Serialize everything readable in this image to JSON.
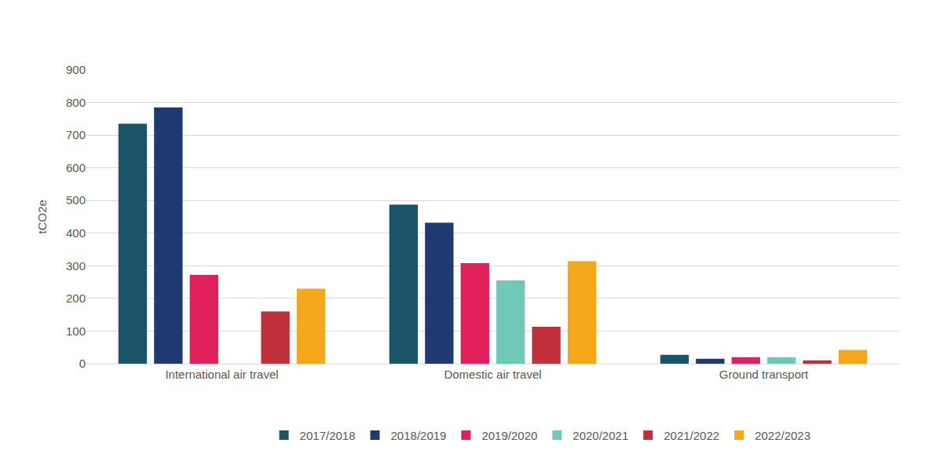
{
  "chart_data": {
    "type": "bar",
    "y_label": "tCO2e",
    "categories": [
      "International air travel",
      "Domestic air travel",
      "Ground transport"
    ],
    "series": [
      {
        "name": "2017/2018",
        "color": "#1b5468",
        "values": [
          735,
          487,
          27
        ]
      },
      {
        "name": "2018/2019",
        "color": "#1f3a70",
        "values": [
          785,
          432,
          15
        ]
      },
      {
        "name": "2019/2020",
        "color": "#e0205a",
        "values": [
          272,
          308,
          20
        ]
      },
      {
        "name": "2020/2021",
        "color": "#70c8b8",
        "values": [
          0,
          255,
          20
        ]
      },
      {
        "name": "2021/2022",
        "color": "#c0303a",
        "values": [
          160,
          113,
          10
        ]
      },
      {
        "name": "2022/2023",
        "color": "#f5a81c",
        "values": [
          230,
          314,
          42
        ]
      }
    ],
    "ylim": [
      0,
      900
    ],
    "yticks": [
      0,
      100,
      200,
      300,
      400,
      500,
      600,
      700,
      800,
      900
    ],
    "grid": true,
    "legend": "bottom"
  }
}
